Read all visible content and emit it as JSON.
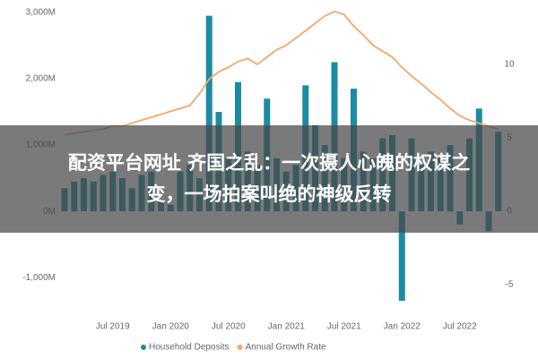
{
  "headline": [
    "配资平台网址 齐国之乱：一次摄人心魄的权谋之",
    "变，一场拍案叫绝的神级反转"
  ],
  "chart_data": {
    "type": "bar",
    "categories": [
      null,
      null,
      null,
      null,
      null,
      "Jul 2019",
      null,
      null,
      null,
      null,
      null,
      "Jan 2020",
      null,
      null,
      null,
      null,
      null,
      "Jul 2020",
      null,
      null,
      null,
      null,
      null,
      "Jan 2021",
      null,
      null,
      null,
      null,
      null,
      "Jul 2021",
      null,
      null,
      null,
      null,
      null,
      "Jan 2022",
      null,
      null,
      null,
      null,
      null,
      "Jul 2022",
      null,
      null,
      null,
      null
    ],
    "series": [
      {
        "name": "Household Deposits",
        "color": "#1d8ba3",
        "values": [
          350,
          450,
          500,
          450,
          550,
          600,
          500,
          350,
          550,
          600,
          150,
          100,
          600,
          700,
          500,
          2950,
          1500,
          800,
          1950,
          900,
          700,
          1700,
          800,
          600,
          700,
          1900,
          1300,
          1000,
          2250,
          800,
          1850,
          900,
          800,
          1100,
          1150,
          -1350,
          1100,
          700,
          900,
          800,
          1000,
          -200,
          1100,
          1550,
          -300,
          1200
        ]
      },
      {
        "name": "Annual Growth Rate",
        "type": "line",
        "axis": "y2",
        "color": "#f2a86c",
        "values": [
          5.2,
          5.3,
          5.4,
          5.5,
          5.6,
          5.8,
          5.8,
          6.0,
          6.2,
          6.4,
          6.6,
          6.8,
          7.0,
          7.2,
          8.0,
          9.0,
          9.5,
          9.8,
          10.2,
          10.4,
          10.0,
          10.5,
          11.0,
          11.3,
          11.8,
          12.3,
          12.8,
          13.3,
          13.6,
          13.4,
          12.6,
          12.0,
          11.3,
          10.9,
          10.5,
          9.8,
          9.2,
          8.7,
          8.1,
          7.6,
          7.0,
          6.5,
          6.2,
          6.0,
          5.8,
          5.6
        ]
      }
    ],
    "ylim": [
      -1470,
      3080
    ],
    "yticks": [
      {
        "value": -1000,
        "label": "-1,000M"
      },
      {
        "value": 0,
        "label": "0M"
      },
      {
        "value": 1000,
        "label": "1,000M"
      },
      {
        "value": 2000,
        "label": "2,000M"
      },
      {
        "value": 3000,
        "label": "3,000M"
      }
    ],
    "y2lim": [
      -6.65,
      13.9
    ],
    "y2ticks": [
      -5,
      0,
      5,
      10
    ],
    "grid": false,
    "legend": "bottom"
  }
}
